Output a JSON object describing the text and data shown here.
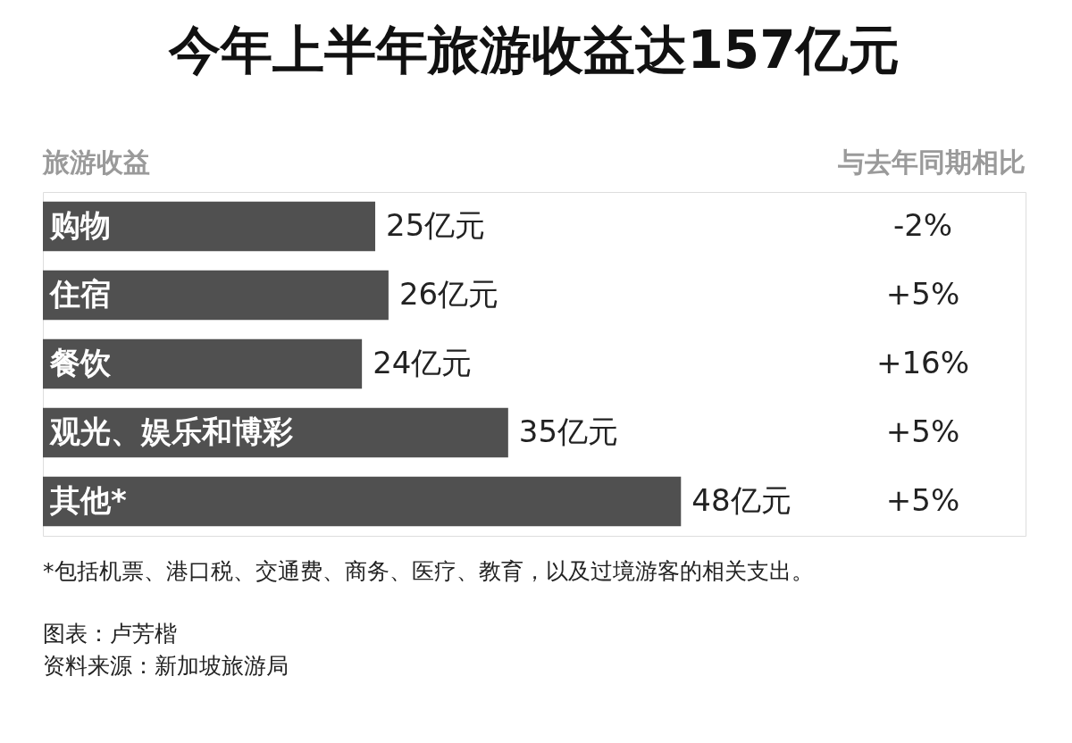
{
  "chart_data": {
    "type": "bar",
    "orientation": "horizontal",
    "title": "今年上半年旅游收益达157亿元",
    "categories": [
      "购物",
      "住宿",
      "餐饮",
      "观光、娱乐和博彩",
      "其他*"
    ],
    "values": [
      25,
      26,
      24,
      35,
      48
    ],
    "value_labels": [
      "25亿元",
      "26亿元",
      "24亿元",
      "35亿元",
      "48亿元"
    ],
    "color": "#505050",
    "annotations": [
      "旅游收益",
      "与去年同期相比",
      "-2%",
      "+5%",
      "+16%",
      "+5%",
      "+5%",
      "*包括机票、港口税、交通费、商务、医疗、教育，以及过境游客的相关支出。",
      "图表：卢芳楷",
      "资料来源：新加坡旅游局"
    ]
  }
}
